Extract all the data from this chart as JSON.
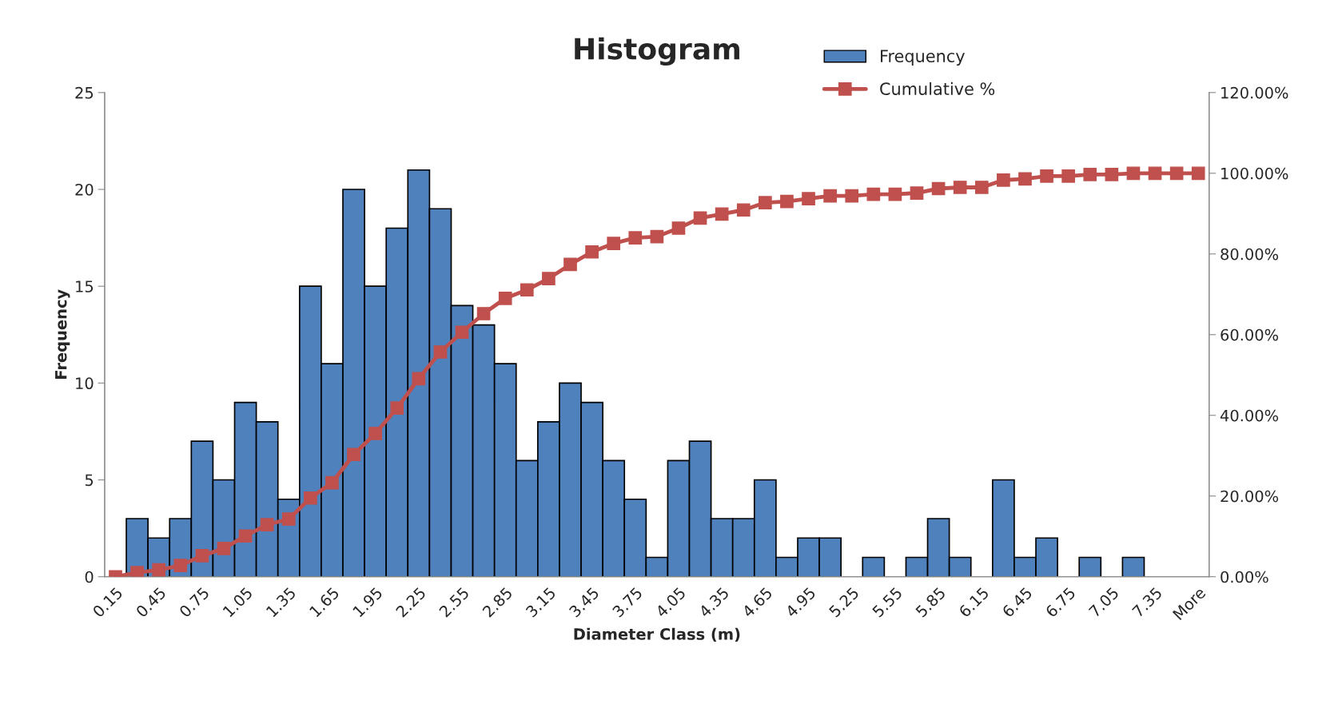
{
  "chart_data": {
    "type": "bar",
    "title": "Histogram",
    "xlabel": "Diameter Class (m)",
    "ylabel": "Frequency",
    "categories": [
      "0.15",
      null,
      "0.45",
      null,
      "0.75",
      null,
      "1.05",
      null,
      "1.35",
      null,
      "1.65",
      null,
      "1.95",
      null,
      "2.25",
      null,
      "2.55",
      null,
      "2.85",
      null,
      "3.15",
      null,
      "3.45",
      null,
      "3.75",
      null,
      "4.05",
      null,
      "4.35",
      null,
      "4.65",
      null,
      "4.95",
      null,
      "5.25",
      null,
      "5.55",
      null,
      "5.85",
      null,
      "6.15",
      null,
      "6.45",
      null,
      "6.75",
      null,
      "7.05",
      null,
      "7.35",
      null,
      "More"
    ],
    "series": [
      {
        "name": "Frequency",
        "color": "#4f81bd",
        "values": [
          0,
          3,
          2,
          3,
          7,
          5,
          9,
          8,
          4,
          15,
          11,
          20,
          15,
          18,
          21,
          19,
          14,
          13,
          11,
          6,
          8,
          10,
          9,
          6,
          4,
          1,
          6,
          7,
          3,
          3,
          5,
          1,
          2,
          2,
          0,
          1,
          0,
          1,
          3,
          1,
          0,
          5,
          1,
          2,
          0,
          1,
          0,
          1,
          0,
          0,
          0
        ]
      },
      {
        "name": "Cumulative %",
        "type": "line",
        "axis": "y2",
        "color": "#c0504d",
        "marker": "square",
        "line_style": "solid",
        "values": [
          0,
          1.0,
          1.7,
          2.8,
          5.2,
          7.0,
          10.1,
          12.9,
          14.3,
          19.5,
          23.3,
          30.3,
          35.5,
          41.8,
          49.1,
          55.7,
          60.6,
          65.2,
          69.0,
          71.1,
          73.9,
          77.4,
          80.5,
          82.6,
          84.0,
          84.3,
          86.4,
          88.9,
          89.9,
          90.9,
          92.7,
          93.0,
          93.7,
          94.4,
          94.4,
          94.8,
          94.8,
          95.1,
          96.2,
          96.5,
          96.5,
          98.3,
          98.6,
          99.3,
          99.3,
          99.7,
          99.7,
          100,
          100,
          100,
          100
        ]
      }
    ],
    "ylim": [
      0,
      25
    ],
    "yticks": [
      0,
      5,
      10,
      15,
      20,
      25
    ],
    "y2lim": [
      0,
      120
    ],
    "y2ticks": [
      {
        "value": 0,
        "label": "0.00%"
      },
      {
        "value": 20,
        "label": "20.00%"
      },
      {
        "value": 40,
        "label": "40.00%"
      },
      {
        "value": 60,
        "label": "60.00%"
      },
      {
        "value": 80,
        "label": "80.00%"
      },
      {
        "value": 100,
        "label": "100.00%"
      },
      {
        "value": 120,
        "label": "120.00%"
      }
    ],
    "grid": false,
    "legend": "top right"
  }
}
